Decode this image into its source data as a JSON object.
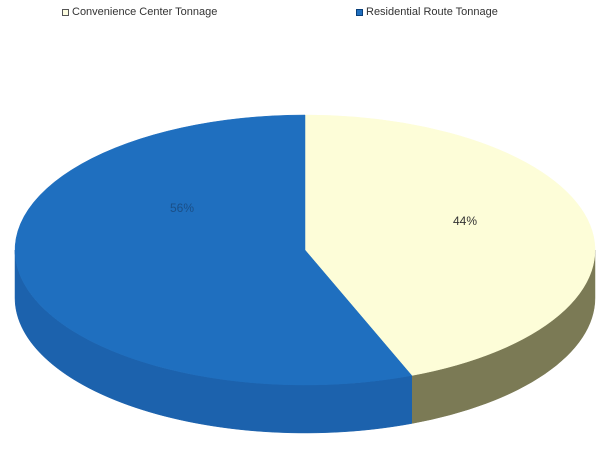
{
  "chart_data": {
    "type": "pie",
    "three_d": true,
    "legend_position": "top",
    "slices": [
      {
        "label": "Convenience Center Tonnage",
        "value": 44,
        "display": "44%",
        "color": "#fdfdd8",
        "side_color": "#7b7a55"
      },
      {
        "label": "Residential Route Tonnage",
        "value": 56,
        "display": "56%",
        "color": "#1f6fbf",
        "side_color": "#1c62ad"
      }
    ]
  }
}
